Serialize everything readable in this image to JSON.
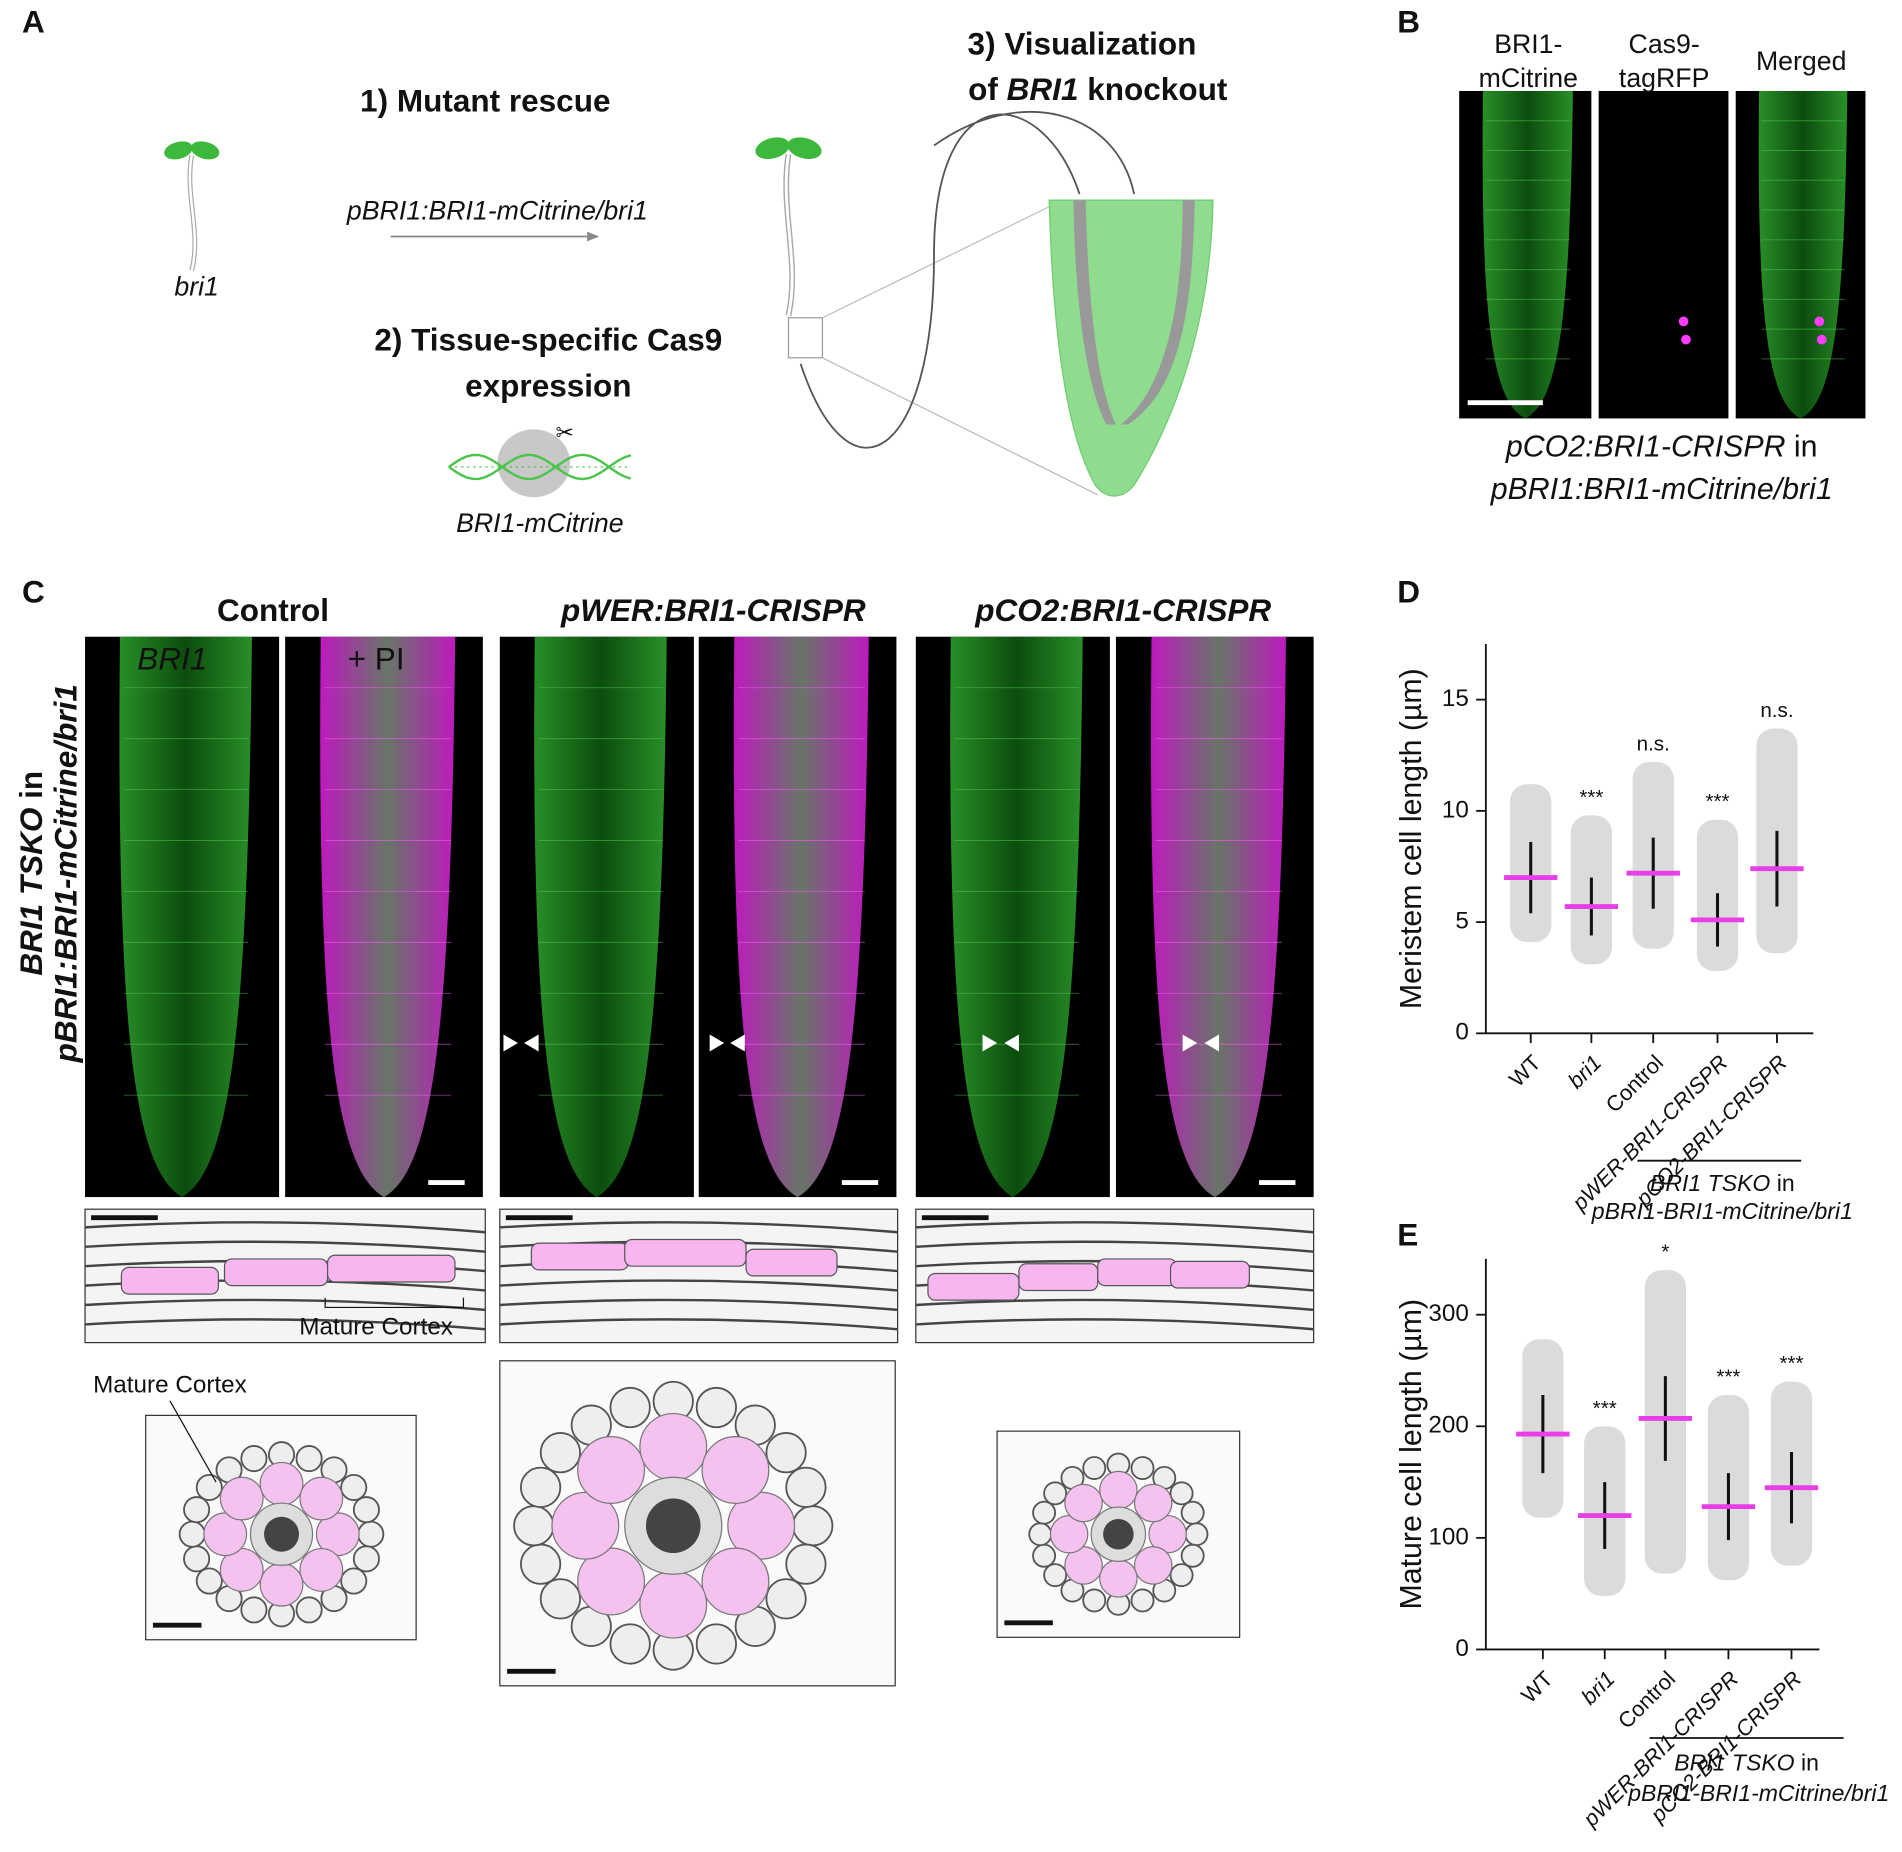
{
  "figure": {
    "panel_letters": [
      "A",
      "B",
      "C",
      "D",
      "E"
    ],
    "a": {
      "step1": "1) Mutant rescue",
      "construct": "pBRI1:BRI1-mCitrine/bri1",
      "mutant": "bri1",
      "step2": [
        "2) Tissue-specific Cas9",
        "expression"
      ],
      "dna_label": "BRI1-mCitrine",
      "step3_line1": "3) Visualization",
      "step3_line2": [
        "of ",
        "BRI1",
        " knockout"
      ]
    },
    "b": {
      "channels": [
        [
          "BRI1-",
          "mCitrine"
        ],
        [
          "Cas9-",
          "tagRFP"
        ],
        [
          "Merged"
        ]
      ],
      "caption_line1": [
        "pCO2:BRI1-CRISPR",
        " in"
      ],
      "caption_line2": "pBRI1:BRI1-mCitrine/bri1"
    },
    "c": {
      "headings": [
        "Control",
        "pWER:BRI1-CRISPR",
        "pCO2:BRI1-CRISPR"
      ],
      "green_label": "BRI1",
      "pi_label": "+ PI",
      "side_label": [
        [
          "BRI1 TSKO",
          " in"
        ],
        "pBRI1:BRI1-mCitrine/bri1"
      ],
      "strip_label": "Mature Cortex",
      "section_label": "Mature Cortex"
    }
  },
  "chart_data": [
    {
      "type": "dot-plot",
      "y_label": "Meristem cell length (µm)",
      "categories": [
        "WT",
        "bri1",
        "Control",
        "pWER-BRI1-CRISPR",
        "pCO2-BRI1-CRISPR"
      ],
      "category_italic": [
        false,
        true,
        false,
        true,
        true
      ],
      "values": [
        7.0,
        5.7,
        7.2,
        5.1,
        7.4
      ],
      "errors": [
        1.6,
        1.3,
        1.6,
        1.2,
        1.7
      ],
      "mins": [
        4.1,
        3.1,
        3.8,
        2.8,
        3.6
      ],
      "maxs": [
        11.2,
        9.8,
        12.2,
        9.6,
        13.7
      ],
      "annotations": [
        null,
        "***",
        "n.s.",
        "***",
        "n.s."
      ],
      "group_label": [
        [
          "BRI1 TSKO",
          " in"
        ],
        "pBRI1-BRI1-mCitrine/bri1"
      ],
      "ylim": [
        0,
        17.5
      ],
      "yticks": [
        0,
        5,
        10,
        15
      ],
      "mean_color": "#e83ee8",
      "error_color": "#111111",
      "point_color": "#bdbdbd"
    },
    {
      "type": "dot-plot",
      "y_label": "Mature cell length (µm)",
      "categories": [
        "WT",
        "bri1",
        "Control",
        "pWER-BRI1-CRISPR",
        "pCO2-BRI1-CRISPR"
      ],
      "category_italic": [
        false,
        true,
        false,
        true,
        true
      ],
      "values": [
        193,
        120,
        207,
        128,
        145
      ],
      "errors": [
        35,
        30,
        38,
        30,
        32
      ],
      "mins": [
        118,
        48,
        68,
        62,
        75
      ],
      "maxs": [
        278,
        200,
        340,
        228,
        240
      ],
      "annotations": [
        null,
        "***",
        "*",
        "***",
        "***"
      ],
      "group_label": [
        [
          "BRI1 TSKO",
          " in"
        ],
        "pBRI1-BRI1-mCitrine/bri1"
      ],
      "ylim": [
        0,
        350
      ],
      "yticks": [
        0,
        100,
        200,
        300
      ],
      "mean_color": "#e83ee8",
      "error_color": "#111111",
      "point_color": "#bdbdbd"
    }
  ]
}
